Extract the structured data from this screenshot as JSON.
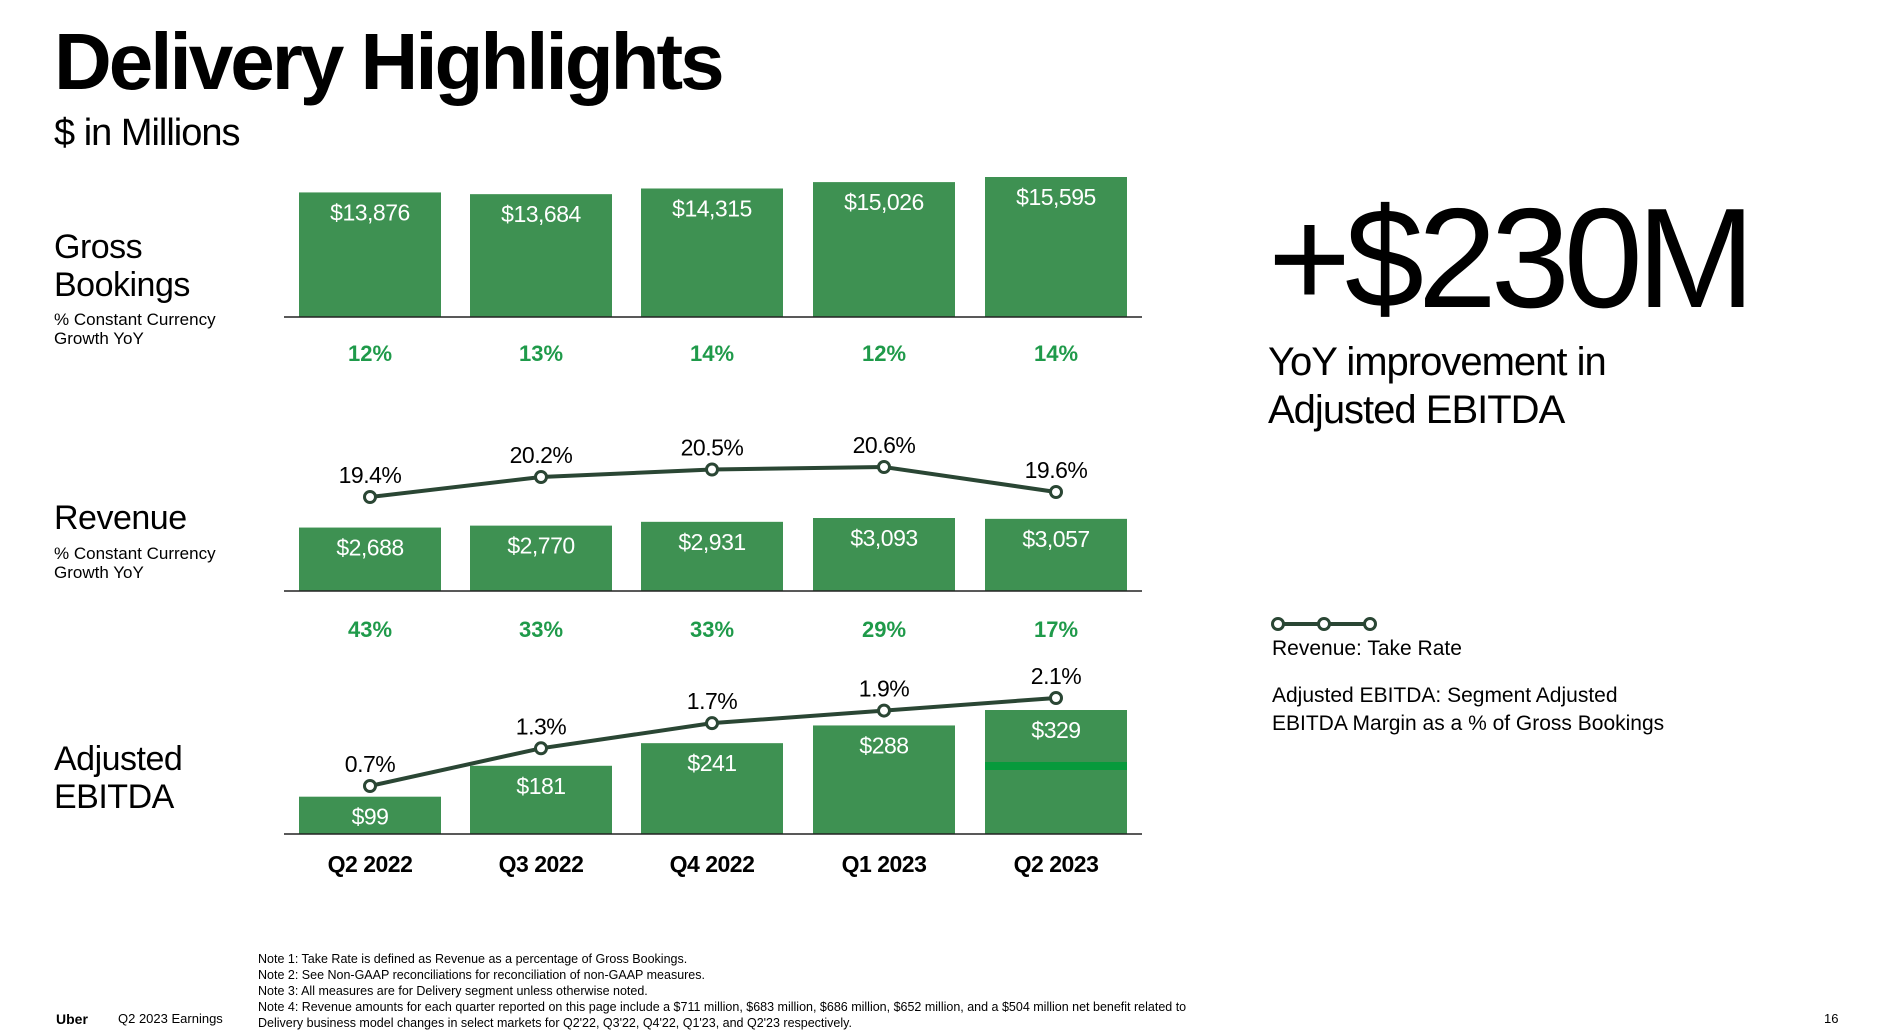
{
  "header": {
    "title": "Delivery Highlights",
    "subtitle": "$ in Millions"
  },
  "rows": {
    "gross_bookings": {
      "label_line1": "Gross",
      "label_line2": "Bookings",
      "sub_line1": "% Constant Currency",
      "sub_line2": "Growth YoY"
    },
    "revenue": {
      "label_line1": "Revenue",
      "sub_line1": "% Constant Currency",
      "sub_line2": "Growth YoY"
    },
    "adjusted_ebitda": {
      "label_line1": "Adjusted",
      "label_line2": "EBITDA"
    }
  },
  "highlight": {
    "value": "+$230M",
    "description": "YoY improvement in Adjusted EBITDA"
  },
  "legend": {
    "take_rate": "Revenue: Take Rate",
    "ebitda_margin": "Adjusted EBITDA: Segment Adjusted EBITDA Margin as a % of Gross Bookings"
  },
  "notes": [
    "Note 1: Take Rate is defined as Revenue as a percentage of Gross Bookings.",
    "Note 2: See Non-GAAP reconciliations for reconciliation of non-GAAP measures.",
    "Note 3: All measures are for Delivery segment unless otherwise noted.",
    "Note 4: Revenue amounts for each quarter reported on this page include a $711 million, $683 million, $686 million, $652 million, and a $504 million net benefit related to",
    "Delivery business model changes in select markets for Q2'22, Q3'22, Q4'22, Q1'23, and Q2'23 respectively."
  ],
  "footer": {
    "brand": "Uber",
    "event": "Q2 2023 Earnings",
    "page": "16"
  },
  "colors": {
    "bar": "#3e9152",
    "growth_text": "#1f9a4a",
    "line": "#2a4634",
    "accent_bar": "#079a3c"
  },
  "chart_data": [
    {
      "type": "bar",
      "name": "Gross Bookings",
      "categories": [
        "Q2 2022",
        "Q3 2022",
        "Q4 2022",
        "Q1 2023",
        "Q2 2023"
      ],
      "values": [
        13876,
        13684,
        14315,
        15026,
        15595
      ],
      "value_labels": [
        "$13,876",
        "$13,684",
        "$14,315",
        "$15,026",
        "$15,595"
      ],
      "growth_labels": [
        "12%",
        "13%",
        "14%",
        "12%",
        "14%"
      ]
    },
    {
      "type": "bar",
      "name": "Revenue",
      "categories": [
        "Q2 2022",
        "Q3 2022",
        "Q4 2022",
        "Q1 2023",
        "Q2 2023"
      ],
      "values": [
        2688,
        2770,
        2931,
        3093,
        3057
      ],
      "value_labels": [
        "$2,688",
        "$2,770",
        "$2,931",
        "$3,093",
        "$3,057"
      ],
      "growth_labels": [
        "43%",
        "33%",
        "33%",
        "29%",
        "17%"
      ],
      "line_values": [
        19.4,
        20.2,
        20.5,
        20.6,
        19.6
      ],
      "line_labels": [
        "19.4%",
        "20.2%",
        "20.5%",
        "20.6%",
        "19.6%"
      ]
    },
    {
      "type": "bar",
      "name": "Adjusted EBITDA",
      "categories": [
        "Q2 2022",
        "Q3 2022",
        "Q4 2022",
        "Q1 2023",
        "Q2 2023"
      ],
      "values": [
        99,
        181,
        241,
        288,
        329
      ],
      "value_labels": [
        "$99",
        "$181",
        "$241",
        "$288",
        "$329"
      ],
      "line_values": [
        0.7,
        1.3,
        1.7,
        1.9,
        2.1
      ],
      "line_labels": [
        "0.7%",
        "1.3%",
        "1.7%",
        "1.9%",
        "2.1%"
      ],
      "category_labels": [
        "Q2 2022",
        "Q3 2022",
        "Q4 2022",
        "Q1 2023",
        "Q2 2023"
      ]
    }
  ]
}
